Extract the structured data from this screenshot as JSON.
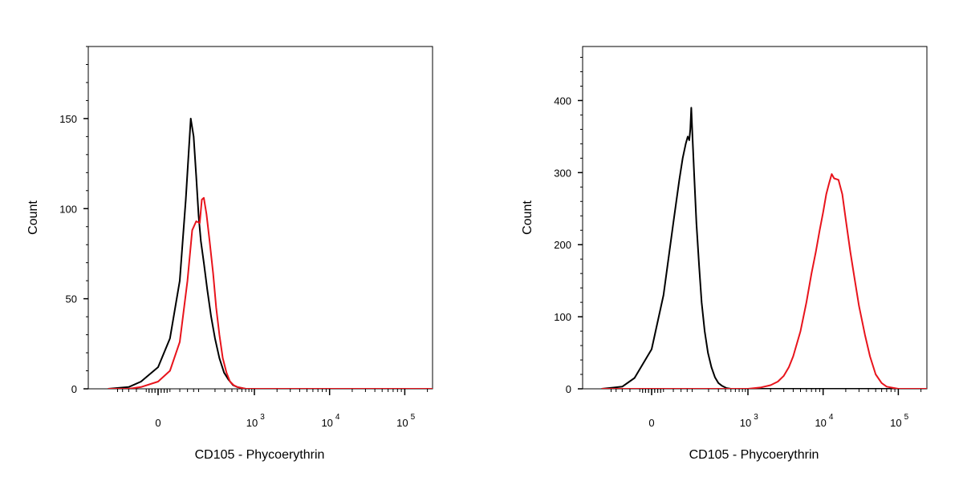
{
  "chart_data": [
    {
      "type": "line",
      "xlabel": "CD105 - Phycoerythrin",
      "ylabel": "Count",
      "x_scale": "biexponential",
      "x_ticks": [
        {
          "value": "0",
          "base": "0",
          "exp": ""
        },
        {
          "value": "10^3",
          "base": "10",
          "exp": "3"
        },
        {
          "value": "10^4",
          "base": "10",
          "exp": "4"
        },
        {
          "value": "10^5",
          "base": "10",
          "exp": "5"
        }
      ],
      "yticks": [
        0,
        50,
        100,
        150
      ],
      "ylim": [
        0,
        190
      ],
      "grid": false,
      "series": [
        {
          "color": "#000000",
          "x": [
            -150,
            -60,
            -30,
            0,
            20,
            40,
            55,
            70,
            80,
            90,
            100,
            110,
            125,
            145,
            170,
            200,
            240,
            290,
            350,
            420,
            500,
            700,
            1000,
            3000,
            10000,
            100000,
            300000
          ],
          "y": [
            0,
            1,
            4,
            12,
            28,
            60,
            105,
            150,
            140,
            118,
            96,
            82,
            70,
            55,
            40,
            28,
            17,
            9,
            5,
            2,
            1,
            0,
            0,
            0,
            0,
            0,
            0
          ]
        },
        {
          "color": "#e8141c",
          "x": [
            -150,
            -60,
            -30,
            0,
            20,
            40,
            60,
            75,
            90,
            105,
            115,
            125,
            140,
            160,
            185,
            210,
            240,
            275,
            320,
            370,
            430,
            500,
            700,
            1000,
            3000,
            10000,
            100000,
            300000
          ],
          "y": [
            0,
            0,
            1,
            4,
            10,
            26,
            60,
            88,
            93,
            92,
            105,
            106,
            97,
            82,
            64,
            45,
            30,
            17,
            9,
            4,
            2,
            1,
            0,
            0,
            0,
            0,
            0,
            0
          ]
        }
      ]
    },
    {
      "type": "line",
      "xlabel": "CD105 - Phycoerythrin",
      "ylabel": "Count",
      "x_scale": "biexponential",
      "x_ticks": [
        {
          "value": "0",
          "base": "0",
          "exp": ""
        },
        {
          "value": "10^3",
          "base": "10",
          "exp": "3"
        },
        {
          "value": "10^4",
          "base": "10",
          "exp": "4"
        },
        {
          "value": "10^5",
          "base": "10",
          "exp": "5"
        }
      ],
      "yticks": [
        0,
        100,
        200,
        300,
        400
      ],
      "ylim": [
        0,
        475
      ],
      "grid": false,
      "series": [
        {
          "color": "#000000",
          "x": [
            -150,
            -60,
            -30,
            0,
            20,
            40,
            55,
            65,
            75,
            82,
            88,
            92,
            96,
            102,
            110,
            120,
            135,
            150,
            170,
            195,
            225,
            260,
            300,
            350,
            420,
            500,
            1000,
            3000,
            10000,
            100000,
            300000
          ],
          "y": [
            0,
            3,
            15,
            55,
            130,
            230,
            290,
            320,
            340,
            350,
            345,
            360,
            390,
            345,
            290,
            230,
            170,
            120,
            80,
            50,
            30,
            16,
            8,
            4,
            1,
            0,
            0,
            0,
            0,
            0,
            0
          ]
        },
        {
          "color": "#e8141c",
          "x": [
            -150,
            1000,
            1500,
            2000,
            2500,
            3000,
            3500,
            4000,
            5000,
            6000,
            7000,
            8000,
            9000,
            10000,
            11000,
            12000,
            13000,
            14000,
            16000,
            18000,
            20000,
            23000,
            26000,
            30000,
            36000,
            42000,
            50000,
            60000,
            70000,
            100000,
            300000
          ],
          "y": [
            0,
            0,
            2,
            5,
            10,
            18,
            30,
            45,
            80,
            120,
            160,
            190,
            220,
            245,
            270,
            285,
            298,
            292,
            290,
            270,
            235,
            190,
            155,
            115,
            75,
            45,
            20,
            8,
            3,
            0,
            0
          ]
        }
      ]
    }
  ]
}
